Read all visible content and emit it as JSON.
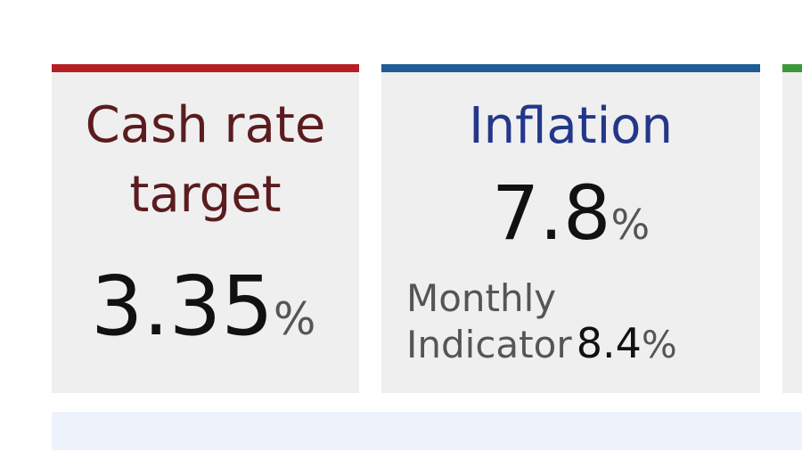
{
  "cards": [
    {
      "title": "Cash rate target",
      "value": "3.35",
      "unit": "%"
    },
    {
      "title": "Inflation",
      "value": "7.8",
      "unit": "%",
      "sub_label_1": "Monthly",
      "sub_label_2": "Indicator",
      "sub_value": "8.4",
      "sub_unit": "%"
    }
  ]
}
